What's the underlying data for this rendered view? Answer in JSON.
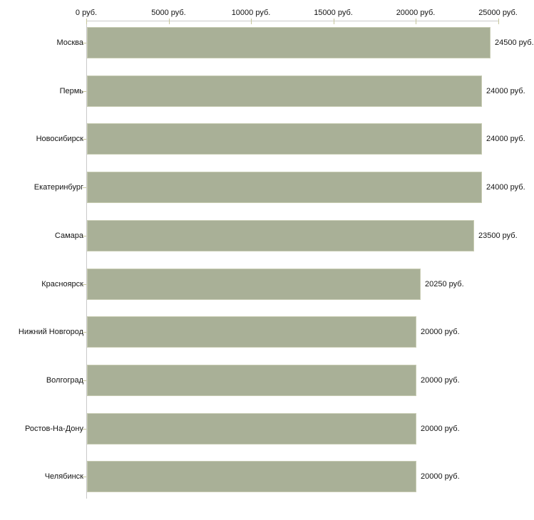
{
  "chart_data": {
    "type": "bar",
    "orientation": "horizontal",
    "title": "",
    "xlabel": "",
    "ylabel": "",
    "xlim": [
      0,
      25000
    ],
    "x_ticks": [
      "0 руб.",
      "5000 руб.",
      "10000 руб.",
      "15000 руб.",
      "20000 руб.",
      "25000 руб."
    ],
    "x_tick_values": [
      0,
      5000,
      10000,
      15000,
      20000,
      25000
    ],
    "categories": [
      "Москва",
      "Пермь",
      "Новосибирск",
      "Екатеринбург",
      "Самара",
      "Красноярск",
      "Нижний Новгород",
      "Волгоград",
      "Ростов-На-Дону",
      "Челябинск"
    ],
    "values": [
      24500,
      24000,
      24000,
      24000,
      23500,
      20250,
      20000,
      20000,
      20000,
      20000
    ],
    "value_labels": [
      "24500 руб.",
      "24000 руб.",
      "24000 руб.",
      "24000 руб.",
      "23500 руб.",
      "20250 руб.",
      "20000 руб.",
      "20000 руб.",
      "20000 руб.",
      "20000 руб."
    ],
    "grid": false,
    "legend": null,
    "colors": {
      "bar_fill": "#a9b097",
      "bar_border": "#c7cbb2",
      "axis_line": "#c9c9c9",
      "tick_mark": "#c6c69c",
      "text": "#141414",
      "background": "#ffffff"
    }
  }
}
